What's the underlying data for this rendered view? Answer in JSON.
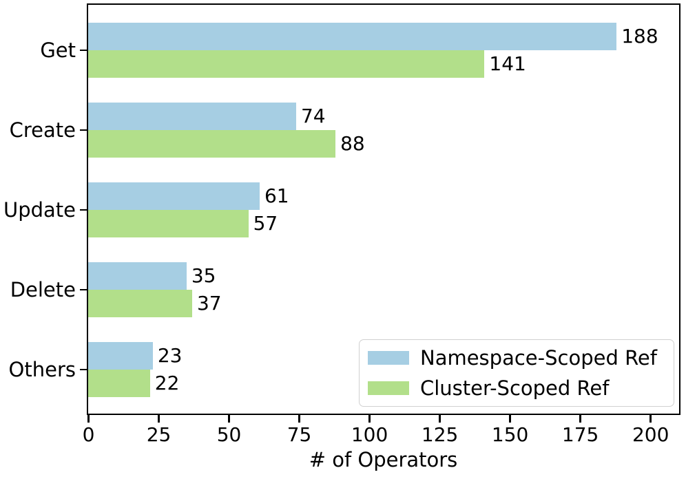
{
  "figure": {
    "background": "#ffffff",
    "spine_color": "#000000",
    "text_color": "#000000"
  },
  "chart_data": {
    "type": "bar",
    "orientation": "horizontal",
    "title": "",
    "xlabel": "# of Operators",
    "ylabel": "",
    "categories": [
      "Get",
      "Create",
      "Update",
      "Delete",
      "Others"
    ],
    "series": [
      {
        "name": "Namespace-Scoped Ref",
        "color": "#a6cee3",
        "values": [
          188,
          74,
          61,
          35,
          23
        ]
      },
      {
        "name": "Cluster-Scoped Ref",
        "color": "#b2df8a",
        "values": [
          141,
          88,
          57,
          37,
          22
        ]
      }
    ],
    "bar_value_labels": [
      {
        "series": "Namespace-Scoped Ref",
        "labels": [
          "188",
          "74",
          "61",
          "35",
          "23"
        ]
      },
      {
        "series": "Cluster-Scoped Ref",
        "labels": [
          "141",
          "88",
          "57",
          "37",
          "22"
        ]
      }
    ],
    "xticks": [
      "0",
      "25",
      "50",
      "75",
      "100",
      "125",
      "150",
      "175",
      "200"
    ],
    "xlim": [
      0,
      210
    ],
    "grid": false,
    "legend_position": "lower right"
  }
}
